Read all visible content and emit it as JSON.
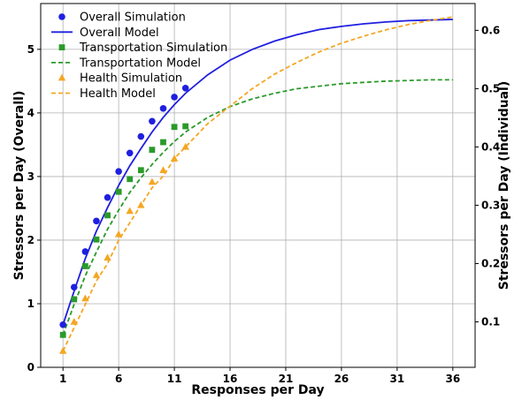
{
  "chart_data": {
    "type": "line",
    "xlabel": "Responses per Day",
    "ylabel_left": "Stressors per Day (Overall)",
    "ylabel_right": "Stressors per Day (Individual)",
    "xlim": [
      -1,
      38
    ],
    "ylim_left": [
      0,
      5.72
    ],
    "ylim_right": [
      0.022,
      0.646
    ],
    "x_ticks": [
      1,
      6,
      11,
      16,
      21,
      26,
      31,
      36
    ],
    "y_ticks_left": [
      0,
      1,
      2,
      3,
      4,
      5
    ],
    "y_ticks_right": [
      0.1,
      0.2,
      0.3,
      0.4,
      0.5,
      0.6
    ],
    "grid": true,
    "legend_position": "top-left",
    "series": [
      {
        "name": "Overall Simulation",
        "kind": "scatter",
        "marker": "circle",
        "color": "#1f1fe0",
        "axis": "left",
        "x": [
          1,
          2,
          3,
          4,
          5,
          6,
          7,
          8,
          9,
          10,
          11,
          12
        ],
        "y": [
          0.67,
          1.26,
          1.82,
          2.3,
          2.67,
          3.08,
          3.37,
          3.63,
          3.87,
          4.07,
          4.25,
          4.39
        ]
      },
      {
        "name": "Overall Model",
        "kind": "line",
        "style": "solid",
        "color": "#1f1fe0",
        "axis": "left",
        "x": [
          1,
          2,
          3,
          4,
          5,
          6,
          7,
          8,
          9,
          10,
          11,
          12,
          14,
          16,
          18,
          20,
          22,
          24,
          26,
          28,
          30,
          32,
          34,
          36
        ],
        "y": [
          0.67,
          1.2,
          1.71,
          2.14,
          2.51,
          2.86,
          3.17,
          3.44,
          3.7,
          3.93,
          4.13,
          4.31,
          4.6,
          4.83,
          5.0,
          5.13,
          5.23,
          5.31,
          5.36,
          5.4,
          5.43,
          5.45,
          5.46,
          5.47
        ]
      },
      {
        "name": "Transportation Simulation",
        "kind": "scatter",
        "marker": "square",
        "color": "#2a9a2a",
        "axis": "left",
        "x": [
          1,
          2,
          3,
          4,
          5,
          6,
          7,
          8,
          9,
          10,
          11,
          12
        ],
        "y": [
          0.51,
          1.07,
          1.59,
          2.01,
          2.39,
          2.76,
          2.96,
          3.1,
          3.42,
          3.54,
          3.78,
          3.79
        ]
      },
      {
        "name": "Transportation Model",
        "kind": "line",
        "style": "dashed",
        "color": "#2a9a2a",
        "axis": "left",
        "x": [
          1,
          2,
          3,
          4,
          5,
          6,
          7,
          8,
          9,
          10,
          11,
          12,
          14,
          16,
          18,
          20,
          22,
          24,
          26,
          28,
          30,
          32,
          34,
          36
        ],
        "y": [
          0.51,
          0.99,
          1.44,
          1.81,
          2.17,
          2.47,
          2.75,
          2.98,
          3.19,
          3.38,
          3.55,
          3.7,
          3.93,
          4.1,
          4.22,
          4.31,
          4.38,
          4.42,
          4.46,
          4.48,
          4.5,
          4.51,
          4.52,
          4.52
        ]
      },
      {
        "name": "Health Simulation",
        "kind": "scatter",
        "marker": "triangle",
        "color": "#f5a623",
        "axis": "right",
        "x": [
          1,
          2,
          3,
          4,
          5,
          6,
          7,
          8,
          9,
          10,
          11,
          12
        ],
        "y": [
          0.05,
          0.1,
          0.14,
          0.18,
          0.21,
          0.25,
          0.29,
          0.3,
          0.34,
          0.36,
          0.38,
          0.4
        ]
      },
      {
        "name": "Health Model",
        "kind": "line",
        "style": "dashed",
        "color": "#f5a623",
        "axis": "right",
        "x": [
          1,
          2,
          3,
          4,
          5,
          6,
          7,
          8,
          9,
          10,
          11,
          12,
          14,
          16,
          18,
          20,
          22,
          24,
          26,
          28,
          30,
          32,
          34,
          36
        ],
        "y": [
          0.05,
          0.09,
          0.13,
          0.17,
          0.2,
          0.24,
          0.27,
          0.3,
          0.33,
          0.35,
          0.38,
          0.4,
          0.44,
          0.47,
          0.5,
          0.525,
          0.545,
          0.563,
          0.578,
          0.59,
          0.601,
          0.61,
          0.617,
          0.623
        ]
      }
    ]
  }
}
